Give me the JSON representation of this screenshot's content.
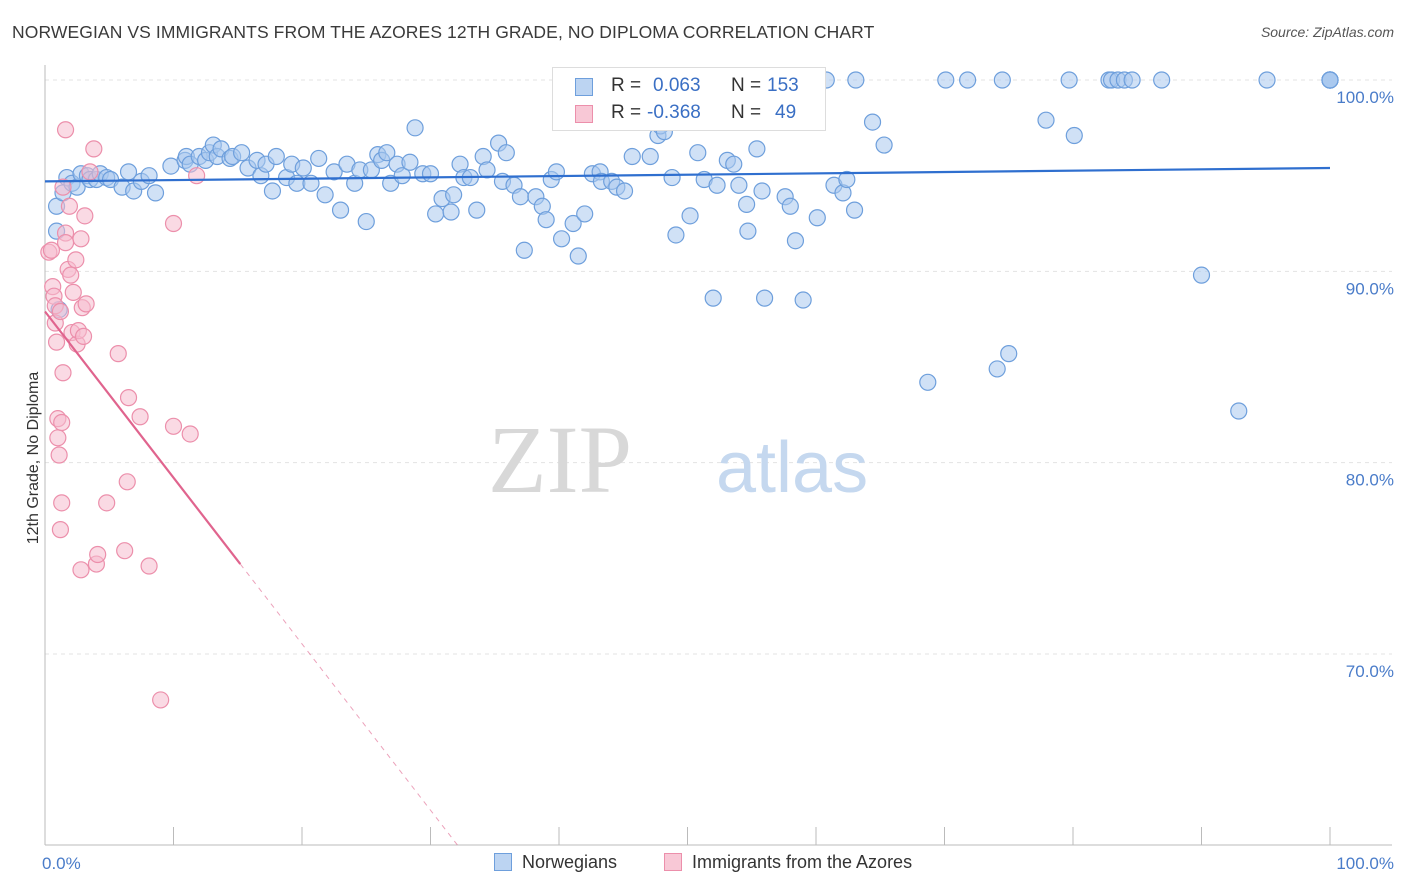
{
  "header": {
    "title": "NORWEGIAN VS IMMIGRANTS FROM THE AZORES 12TH GRADE, NO DIPLOMA CORRELATION CHART",
    "source": "Source: ZipAtlas.com"
  },
  "watermark": {
    "part1": "ZIP",
    "part2": "atlas"
  },
  "legend": {
    "series1": {
      "r_label": "R =",
      "r_value": "0.063",
      "n_label": "N =",
      "n_value": "153"
    },
    "series2": {
      "r_label": "R =",
      "r_value": "-0.368",
      "n_label": "N =",
      "n_value": "49"
    }
  },
  "colors": {
    "blue_fill": "#a9c8ee",
    "blue_stroke": "#6e9fdc",
    "blue_line": "#2f6fcf",
    "pink_fill": "#f6bccd",
    "pink_stroke": "#ec8fab",
    "pink_line": "#e0648e",
    "tick_text": "#4a7cc9",
    "grid": "#e3e3e3"
  },
  "chart_data": {
    "type": "scatter",
    "title": "NORWEGIAN VS IMMIGRANTS FROM THE AZORES 12TH GRADE, NO DIPLOMA CORRELATION CHART",
    "xlabel": "",
    "ylabel": "12th Grade, No Diploma",
    "xlim": [
      0,
      100
    ],
    "ylim": [
      60.5,
      100.8
    ],
    "x_tick_labels": [
      "0.0%",
      "100.0%"
    ],
    "y_ticks": [
      70,
      80,
      90,
      100
    ],
    "y_tick_labels": [
      "70.0%",
      "80.0%",
      "90.0%",
      "100.0%"
    ],
    "grid": true,
    "legend_position": "top-center",
    "series": [
      {
        "name": "Norwegians",
        "color": "#6e9fdc",
        "trend": {
          "x": [
            0,
            100
          ],
          "y": [
            94.7,
            95.4
          ]
        },
        "points": [
          [
            0.9,
            92.1
          ],
          [
            0.9,
            93.4
          ],
          [
            1.1,
            88.0
          ],
          [
            1.4,
            94.1
          ],
          [
            1.7,
            94.9
          ],
          [
            2.1,
            94.6
          ],
          [
            2.5,
            94.4
          ],
          [
            2.8,
            95.1
          ],
          [
            3.3,
            95.0
          ],
          [
            3.5,
            94.8
          ],
          [
            4.0,
            94.8
          ],
          [
            4.3,
            95.1
          ],
          [
            4.8,
            94.9
          ],
          [
            5.1,
            94.8
          ],
          [
            6.0,
            94.4
          ],
          [
            6.5,
            95.2
          ],
          [
            6.9,
            94.2
          ],
          [
            7.5,
            94.7
          ],
          [
            8.1,
            95.0
          ],
          [
            8.6,
            94.1
          ],
          [
            9.8,
            95.5
          ],
          [
            10.9,
            95.8
          ],
          [
            11.0,
            96.0
          ],
          [
            11.3,
            95.6
          ],
          [
            12.0,
            96.0
          ],
          [
            12.5,
            95.8
          ],
          [
            12.8,
            96.2
          ],
          [
            13.1,
            96.6
          ],
          [
            13.4,
            96.0
          ],
          [
            13.7,
            96.4
          ],
          [
            14.4,
            95.9
          ],
          [
            14.6,
            96.0
          ],
          [
            15.3,
            96.2
          ],
          [
            15.8,
            95.4
          ],
          [
            16.5,
            95.8
          ],
          [
            16.8,
            95.0
          ],
          [
            17.2,
            95.6
          ],
          [
            17.7,
            94.2
          ],
          [
            18.0,
            96.0
          ],
          [
            18.8,
            94.9
          ],
          [
            19.2,
            95.6
          ],
          [
            19.6,
            94.6
          ],
          [
            20.1,
            95.4
          ],
          [
            20.7,
            94.6
          ],
          [
            21.3,
            95.9
          ],
          [
            21.8,
            94.0
          ],
          [
            22.5,
            95.2
          ],
          [
            23.0,
            93.2
          ],
          [
            23.5,
            95.6
          ],
          [
            24.1,
            94.6
          ],
          [
            24.5,
            95.3
          ],
          [
            25.0,
            92.6
          ],
          [
            25.4,
            95.3
          ],
          [
            25.9,
            96.1
          ],
          [
            26.2,
            95.8
          ],
          [
            26.6,
            96.2
          ],
          [
            26.9,
            94.6
          ],
          [
            27.4,
            95.6
          ],
          [
            27.8,
            95.0
          ],
          [
            28.4,
            95.7
          ],
          [
            28.8,
            97.5
          ],
          [
            29.4,
            95.1
          ],
          [
            30.0,
            95.1
          ],
          [
            30.4,
            93.0
          ],
          [
            30.9,
            93.8
          ],
          [
            31.6,
            93.1
          ],
          [
            31.8,
            94.0
          ],
          [
            32.3,
            95.6
          ],
          [
            32.6,
            94.9
          ],
          [
            33.1,
            94.9
          ],
          [
            33.6,
            93.2
          ],
          [
            34.1,
            96.0
          ],
          [
            34.4,
            95.3
          ],
          [
            35.3,
            96.7
          ],
          [
            35.6,
            94.7
          ],
          [
            35.9,
            96.2
          ],
          [
            36.5,
            94.5
          ],
          [
            37.0,
            93.9
          ],
          [
            37.3,
            91.1
          ],
          [
            38.2,
            93.9
          ],
          [
            38.7,
            93.4
          ],
          [
            39.0,
            92.7
          ],
          [
            39.4,
            94.8
          ],
          [
            39.8,
            95.2
          ],
          [
            40.2,
            91.7
          ],
          [
            41.1,
            92.5
          ],
          [
            41.5,
            90.8
          ],
          [
            42.0,
            93.0
          ],
          [
            42.6,
            95.1
          ],
          [
            43.2,
            95.2
          ],
          [
            43.3,
            94.7
          ],
          [
            44.1,
            94.7
          ],
          [
            44.5,
            94.4
          ],
          [
            45.1,
            94.2
          ],
          [
            45.7,
            96.0
          ],
          [
            47.1,
            96.0
          ],
          [
            47.7,
            97.1
          ],
          [
            47.9,
            97.6
          ],
          [
            48.2,
            97.3
          ],
          [
            48.8,
            94.9
          ],
          [
            49.1,
            91.9
          ],
          [
            50.2,
            92.9
          ],
          [
            50.8,
            96.2
          ],
          [
            51.3,
            94.8
          ],
          [
            52.0,
            88.6
          ],
          [
            52.3,
            94.5
          ],
          [
            53.1,
            95.8
          ],
          [
            53.6,
            95.6
          ],
          [
            54.0,
            94.5
          ],
          [
            54.6,
            93.5
          ],
          [
            54.7,
            92.1
          ],
          [
            55.4,
            96.4
          ],
          [
            55.8,
            94.2
          ],
          [
            56.0,
            88.6
          ],
          [
            57.6,
            93.9
          ],
          [
            58.0,
            93.4
          ],
          [
            58.4,
            91.6
          ],
          [
            59.0,
            88.5
          ],
          [
            60.1,
            92.8
          ],
          [
            61.4,
            94.5
          ],
          [
            62.1,
            94.1
          ],
          [
            62.4,
            94.8
          ],
          [
            63.0,
            93.2
          ],
          [
            64.4,
            97.8
          ],
          [
            65.3,
            96.6
          ],
          [
            68.7,
            84.2
          ],
          [
            70.1,
            100.0
          ],
          [
            74.1,
            84.9
          ],
          [
            75.0,
            85.7
          ],
          [
            77.9,
            97.9
          ],
          [
            80.1,
            97.1
          ],
          [
            82.8,
            100.0
          ],
          [
            86.9,
            100.0
          ],
          [
            90.0,
            89.8
          ],
          [
            92.9,
            82.7
          ],
          [
            95.1,
            100.0
          ],
          [
            100.0,
            100.0
          ],
          [
            100.0,
            100.0
          ],
          [
            100.0,
            100.0
          ],
          [
            100.0,
            100.0
          ],
          [
            100.0,
            100.0
          ],
          [
            100.0,
            100.0
          ],
          [
            63.1,
            100.0
          ],
          [
            60.8,
            100.0
          ],
          [
            59.8,
            100.0
          ],
          [
            57.3,
            100.0
          ],
          [
            71.8,
            100.0
          ],
          [
            74.5,
            100.0
          ],
          [
            79.7,
            100.0
          ],
          [
            83.0,
            100.0
          ],
          [
            83.5,
            100.0
          ],
          [
            84.0,
            100.0
          ],
          [
            84.6,
            100.0
          ]
        ]
      },
      {
        "name": "Immigrants from the Azores",
        "color": "#ec8fab",
        "trend": {
          "x": [
            0,
            15.2
          ],
          "y": [
            87.9,
            74.7
          ],
          "dashed_to": {
            "x": 100,
            "y": 1.0
          }
        },
        "points": [
          [
            0.3,
            91.0
          ],
          [
            0.5,
            91.1
          ],
          [
            0.6,
            89.2
          ],
          [
            0.7,
            88.7
          ],
          [
            0.8,
            88.2
          ],
          [
            0.8,
            87.3
          ],
          [
            0.9,
            86.3
          ],
          [
            1.0,
            82.3
          ],
          [
            1.0,
            81.3
          ],
          [
            1.1,
            80.4
          ],
          [
            1.2,
            87.9
          ],
          [
            1.3,
            82.1
          ],
          [
            1.3,
            77.9
          ],
          [
            1.4,
            84.7
          ],
          [
            1.4,
            94.4
          ],
          [
            1.6,
            97.4
          ],
          [
            1.6,
            92.0
          ],
          [
            1.8,
            90.1
          ],
          [
            1.9,
            93.4
          ],
          [
            2.0,
            89.8
          ],
          [
            2.1,
            86.8
          ],
          [
            2.2,
            88.9
          ],
          [
            2.4,
            90.6
          ],
          [
            2.5,
            86.2
          ],
          [
            2.6,
            86.9
          ],
          [
            2.8,
            91.7
          ],
          [
            2.9,
            88.1
          ],
          [
            3.0,
            86.6
          ],
          [
            3.1,
            92.9
          ],
          [
            3.2,
            88.3
          ],
          [
            3.5,
            95.2
          ],
          [
            3.8,
            96.4
          ],
          [
            4.0,
            74.7
          ],
          [
            4.1,
            75.2
          ],
          [
            4.8,
            77.9
          ],
          [
            5.7,
            85.7
          ],
          [
            6.2,
            75.4
          ],
          [
            6.4,
            79.0
          ],
          [
            6.5,
            83.4
          ],
          [
            7.4,
            82.4
          ],
          [
            8.1,
            74.6
          ],
          [
            9.0,
            67.6
          ],
          [
            10.0,
            81.9
          ],
          [
            10.0,
            92.5
          ],
          [
            11.3,
            81.5
          ],
          [
            11.8,
            95.0
          ],
          [
            1.2,
            76.5
          ],
          [
            2.8,
            74.4
          ],
          [
            1.6,
            91.5
          ]
        ]
      }
    ]
  },
  "axis": {
    "x_left_label": "0.0%",
    "x_right_label": "100.0%"
  },
  "bottom_legend": {
    "item1": "Norwegians",
    "item2": "Immigrants from the Azores"
  },
  "y_axis_title": "12th Grade, No Diploma"
}
